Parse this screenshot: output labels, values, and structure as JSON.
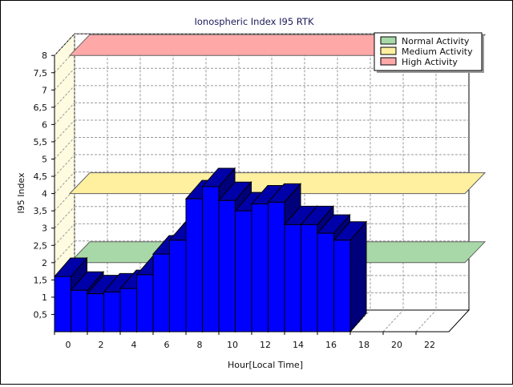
{
  "chart_data": {
    "type": "bar",
    "title": "Ionospheric Index I95 RTK",
    "xlabel": "Hour[Local Time]",
    "ylabel": "I95 Index",
    "ylim": [
      0,
      8
    ],
    "xlim": [
      0,
      24
    ],
    "y_ticks": [
      "0,5",
      "1",
      "1,5",
      "2",
      "2,5",
      "3",
      "3,5",
      "4",
      "4,5",
      "5",
      "5,5",
      "6",
      "6,5",
      "7",
      "7,5",
      "8"
    ],
    "x_ticks": [
      "0",
      "2",
      "4",
      "6",
      "8",
      "10",
      "12",
      "14",
      "16",
      "18",
      "20",
      "22"
    ],
    "grid": true,
    "legend_position": "top-right",
    "series": [
      {
        "hours": [
          0,
          1,
          2,
          3,
          4,
          5,
          6,
          7,
          8,
          9,
          10,
          11,
          12,
          13,
          14,
          15,
          16,
          17
        ],
        "values": [
          1.6,
          1.2,
          1.1,
          1.15,
          1.25,
          1.65,
          2.25,
          2.65,
          3.85,
          4.2,
          3.8,
          3.5,
          3.7,
          3.75,
          3.1,
          3.1,
          2.85,
          2.65
        ],
        "color": "#0000ff"
      }
    ],
    "bands": [
      {
        "name": "Normal Activity",
        "value": 2.0,
        "color": "#a8d8a8"
      },
      {
        "name": "Medium Activity",
        "value": 4.0,
        "color": "#fff0a0"
      },
      {
        "name": "High Activity",
        "value": 8.0,
        "color": "#ffa8a8"
      }
    ]
  }
}
